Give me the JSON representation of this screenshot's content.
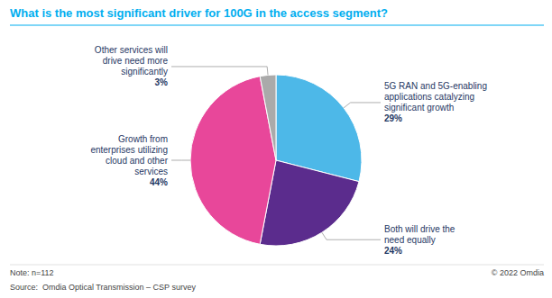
{
  "chart_data": {
    "type": "pie",
    "title": "What is the most significant driver for 100G in the access segment?",
    "categories": [
      "5G RAN and 5G-enabling\napplications catalyzing\nsignificant growth",
      "Both will drive the\nneed equally",
      "Growth from\nenterprises utilizing\ncloud and other\nservices",
      "Other services will\ndrive need more\nsignificantly"
    ],
    "values": [
      29,
      24,
      44,
      3
    ],
    "value_labels": [
      "29%",
      "24%",
      "44%",
      "3%"
    ],
    "data_labels": true,
    "colors": [
      "#4DB8E8",
      "#5B2C8D",
      "#E8479A",
      "#AAAAAA"
    ],
    "annotations": [
      "Note: n=112",
      "© 2022 Omdia",
      "Source:  Omdia Optical Transmission – CSP survey"
    ]
  }
}
